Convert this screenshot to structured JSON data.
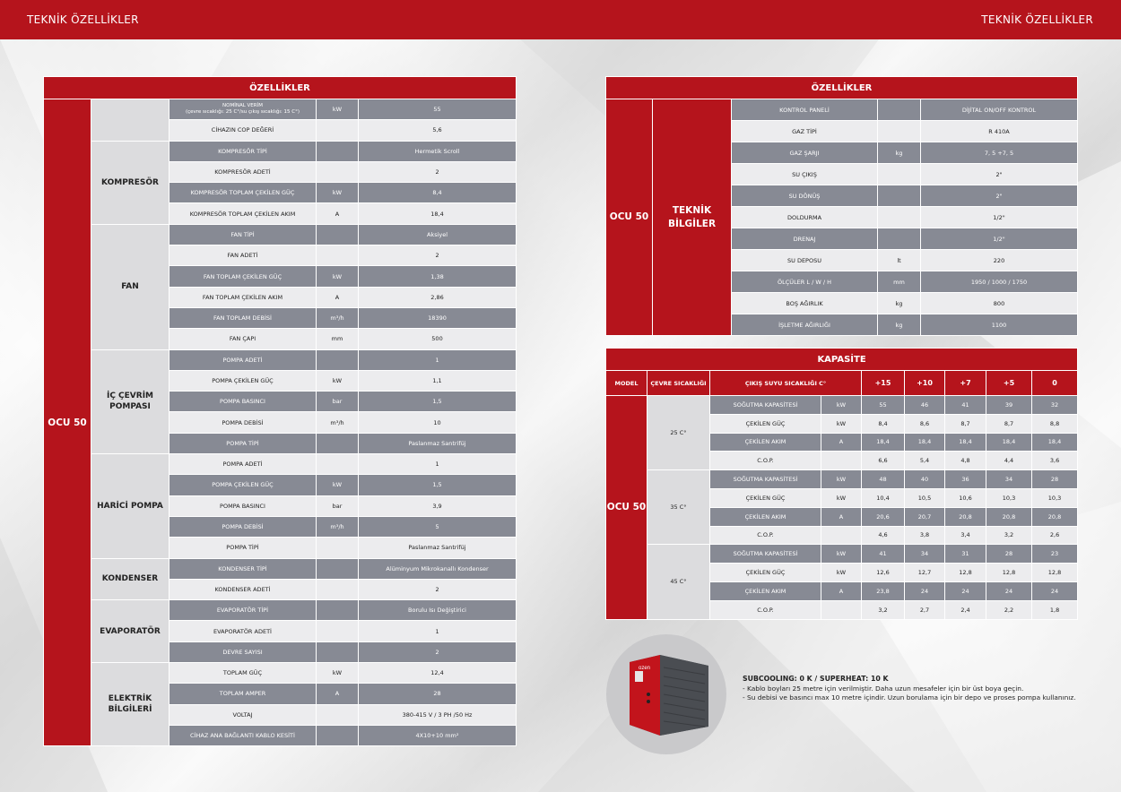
{
  "header": {
    "left_title": "TEKNİK ÖZELLİKLER",
    "right_title": "TEKNİK ÖZELLİKLER"
  },
  "left_table": {
    "title": "ÖZELLİKLER",
    "model": "OCU 50",
    "groups": [
      {
        "name": "",
        "rows": [
          {
            "label": "NOMİNAL VERİM",
            "label2": "(çevre sıcaklığı: 25 C°/su çıkış sıcaklığı: 15 C°)",
            "unit": "kW",
            "value": "55"
          },
          {
            "label": "CİHAZIN COP DEĞERİ",
            "unit": "",
            "value": "5,6"
          }
        ]
      },
      {
        "name": "KOMPRESÖR",
        "rows": [
          {
            "label": "KOMPRESÖR TİPİ",
            "unit": "",
            "value": "Hermetik Scroll"
          },
          {
            "label": "KOMPRESÖR ADETİ",
            "unit": "",
            "value": "2"
          },
          {
            "label": "KOMPRESÖR TOPLAM ÇEKİLEN GÜÇ",
            "unit": "kW",
            "value": "8,4"
          },
          {
            "label": "KOMPRESÖR TOPLAM ÇEKİLEN AKIM",
            "unit": "A",
            "value": "18,4"
          }
        ]
      },
      {
        "name": "FAN",
        "rows": [
          {
            "label": "FAN TİPİ",
            "unit": "",
            "value": "Aksiyel"
          },
          {
            "label": "FAN ADETİ",
            "unit": "",
            "value": "2"
          },
          {
            "label": "FAN TOPLAM ÇEKİLEN GÜÇ",
            "unit": "kW",
            "value": "1,38"
          },
          {
            "label": "FAN TOPLAM ÇEKİLEN AKIM",
            "unit": "A",
            "value": "2,86"
          },
          {
            "label": "FAN TOPLAM DEBİSİ",
            "unit": "m³/h",
            "value": "18390"
          },
          {
            "label": "FAN ÇAPI",
            "unit": "mm",
            "value": "500"
          }
        ]
      },
      {
        "name": "İÇ ÇEVRİM POMPASI",
        "rows": [
          {
            "label": "POMPA ADETİ",
            "unit": "",
            "value": "1"
          },
          {
            "label": "POMPA ÇEKİLEN GÜÇ",
            "unit": "kW",
            "value": "1,1"
          },
          {
            "label": "POMPA BASINCI",
            "unit": "bar",
            "value": "1,5"
          },
          {
            "label": "POMPA DEBİSİ",
            "unit": "m³/h",
            "value": "10"
          },
          {
            "label": "POMPA TİPİ",
            "unit": "",
            "value": "Paslanmaz Santrifüj"
          }
        ]
      },
      {
        "name": "HARİCİ POMPA",
        "rows": [
          {
            "label": "POMPA ADETİ",
            "unit": "",
            "value": "1"
          },
          {
            "label": "POMPA ÇEKİLEN GÜÇ",
            "unit": "kW",
            "value": "1,5"
          },
          {
            "label": "POMPA BASINCI",
            "unit": "bar",
            "value": "3,9"
          },
          {
            "label": "POMPA DEBİSİ",
            "unit": "m³/h",
            "value": "5"
          },
          {
            "label": "POMPA TİPİ",
            "unit": "",
            "value": "Paslanmaz Santrifüj"
          }
        ]
      },
      {
        "name": "KONDENSER",
        "rows": [
          {
            "label": "KONDENSER TİPİ",
            "unit": "",
            "value": "Alüminyum Mikrokanallı Kondenser"
          },
          {
            "label": "KONDENSER ADETİ",
            "unit": "",
            "value": "2"
          }
        ]
      },
      {
        "name": "EVAPORATÖR",
        "rows": [
          {
            "label": "EVAPORATÖR TİPİ",
            "unit": "",
            "value": "Borulu Isı Değiştirici"
          },
          {
            "label": "EVAPORATÖR ADETİ",
            "unit": "",
            "value": "1"
          },
          {
            "label": "DEVRE SAYISI",
            "unit": "",
            "value": "2"
          }
        ]
      },
      {
        "name": "ELEKTRİK BİLGİLERİ",
        "rows": [
          {
            "label": "TOPLAM GÜÇ",
            "unit": "kW",
            "value": "12,4"
          },
          {
            "label": "TOPLAM AMPER",
            "unit": "A",
            "value": "28"
          },
          {
            "label": "VOLTAJ",
            "unit": "",
            "value": "380-415 V / 3 PH /50 Hz"
          },
          {
            "label": "CİHAZ ANA BAĞLANTI KABLO KESİTİ",
            "unit": "",
            "value": "4X10+10 mm²"
          }
        ]
      }
    ]
  },
  "right_table": {
    "title": "ÖZELLİKLER",
    "model": "OCU 50",
    "group": "TEKNİK BİLGİLER",
    "rows": [
      {
        "label": "KONTROL PANELİ",
        "unit": "",
        "value": "DİJİTAL ON/OFF KONTROL"
      },
      {
        "label": "GAZ TİPİ",
        "unit": "",
        "value": "R 410A"
      },
      {
        "label": "GAZ ŞARJI",
        "unit": "kg",
        "value": "7, 5 +7, 5"
      },
      {
        "label": "SU ÇIKIŞ",
        "unit": "",
        "value": "2\""
      },
      {
        "label": "SU DÖNÜŞ",
        "unit": "",
        "value": "2\""
      },
      {
        "label": "DOLDURMA",
        "unit": "",
        "value": "1/2\""
      },
      {
        "label": "DRENAJ",
        "unit": "",
        "value": "1/2\""
      },
      {
        "label": "SU DEPOSU",
        "unit": "lt",
        "value": "220"
      },
      {
        "label": "ÖLÇÜLER L / W / H",
        "unit": "mm",
        "value": "1950 / 1000 / 1750"
      },
      {
        "label": "BOŞ AĞIRLIK",
        "unit": "kg",
        "value": "800"
      },
      {
        "label": "İŞLETME AĞIRLIĞI",
        "unit": "kg",
        "value": "1100"
      }
    ]
  },
  "capacity_table": {
    "title": "KAPASİTE",
    "headers": {
      "model": "MODEL",
      "ambient": "ÇEVRE SICAKLIĞI",
      "outlet": "ÇIKIŞ SUYU SICAKLIĞI C°",
      "temps": [
        "+15",
        "+10",
        "+7",
        "+5",
        "0"
      ]
    },
    "model": "OCU 50",
    "blocks": [
      {
        "ambient": "25 C°",
        "rows": [
          {
            "label": "SOĞUTMA KAPASİTESİ",
            "unit": "kW",
            "values": [
              "55",
              "46",
              "41",
              "39",
              "32"
            ]
          },
          {
            "label": "ÇEKİLEN GÜÇ",
            "unit": "kW",
            "values": [
              "8,4",
              "8,6",
              "8,7",
              "8,7",
              "8,8"
            ]
          },
          {
            "label": "ÇEKİLEN AKIM",
            "unit": "A",
            "values": [
              "18,4",
              "18,4",
              "18,4",
              "18,4",
              "18,4"
            ]
          },
          {
            "label": "C.O.P.",
            "unit": "",
            "values": [
              "6,6",
              "5,4",
              "4,8",
              "4,4",
              "3,6"
            ]
          }
        ]
      },
      {
        "ambient": "35 C°",
        "rows": [
          {
            "label": "SOĞUTMA KAPASİTESİ",
            "unit": "kW",
            "values": [
              "48",
              "40",
              "36",
              "34",
              "28"
            ]
          },
          {
            "label": "ÇEKİLEN GÜÇ",
            "unit": "kW",
            "values": [
              "10,4",
              "10,5",
              "10,6",
              "10,3",
              "10,3"
            ]
          },
          {
            "label": "ÇEKİLEN AKIM",
            "unit": "A",
            "values": [
              "20,6",
              "20,7",
              "20,8",
              "20,8",
              "20,8"
            ]
          },
          {
            "label": "C.O.P.",
            "unit": "",
            "values": [
              "4,6",
              "3,8",
              "3,4",
              "3,2",
              "2,6"
            ]
          }
        ]
      },
      {
        "ambient": "45 C°",
        "rows": [
          {
            "label": "SOĞUTMA KAPASİTESİ",
            "unit": "kW",
            "values": [
              "41",
              "34",
              "31",
              "28",
              "23"
            ]
          },
          {
            "label": "ÇEKİLEN GÜÇ",
            "unit": "kW",
            "values": [
              "12,6",
              "12,7",
              "12,8",
              "12,8",
              "12,8"
            ]
          },
          {
            "label": "ÇEKİLEN AKIM",
            "unit": "A",
            "values": [
              "23,8",
              "24",
              "24",
              "24",
              "24"
            ]
          },
          {
            "label": "C.O.P.",
            "unit": "",
            "values": [
              "3,2",
              "2,7",
              "2,4",
              "2,2",
              "1,8"
            ]
          }
        ]
      }
    ]
  },
  "notes": {
    "title": "SUBCOOLING: 0 K / SUPERHEAT: 10 K",
    "line1": "- Kablo boyları 25 metre için verilmiştir. Daha uzun mesafeler için bir üst boya geçin.",
    "line2": "- Su debisi ve basıncı max 10 metre içindir. Uzun borulama için bir depo ve proses pompa kullanınız."
  },
  "product": {
    "brand": "ozen"
  },
  "colors": {
    "brand_red": "#b5141c",
    "dark_row": "#878a94",
    "light_row": "#ececee",
    "group_cell": "#dcdcde"
  }
}
